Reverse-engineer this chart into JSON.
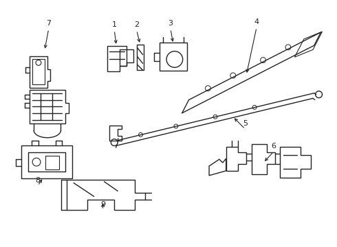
{
  "background_color": "#ffffff",
  "line_color": "#222222",
  "line_width": 1.0,
  "fig_width": 4.9,
  "fig_height": 3.6,
  "dpi": 100,
  "xlim": [
    0,
    490
  ],
  "ylim": [
    0,
    360
  ]
}
